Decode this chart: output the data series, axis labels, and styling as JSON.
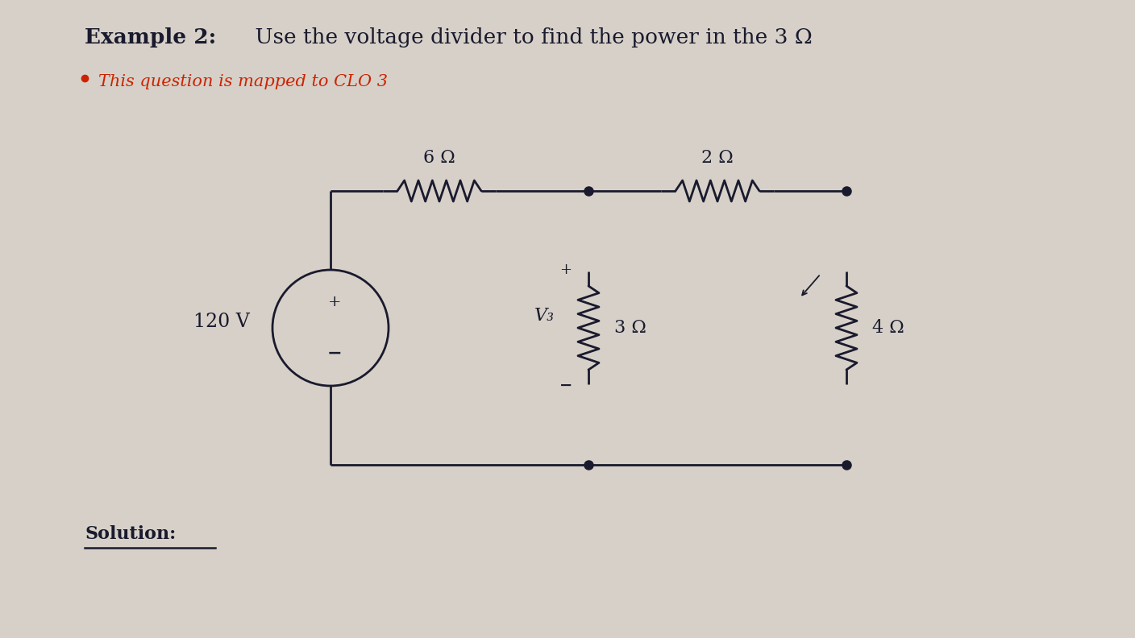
{
  "title_bold": "Example 2:",
  "title_normal": " Use the voltage divider to find the power in the 3 Ω",
  "subtitle": "This question is mapped to CLO 3",
  "solution_label": "Solution:",
  "background_color": "#d6d0c8",
  "text_color": "#1a1a2e",
  "subtitle_color": "#cc2200",
  "circuit_color": "#1a1a2e",
  "voltage_source": "120 V",
  "r1_label": "6 Ω",
  "r2_label": "2 Ω",
  "r3_label": "3 Ω",
  "r3_voltage_label": "V₃",
  "r4_label": "4 Ω",
  "title_fontsize": 19,
  "subtitle_fontsize": 15,
  "label_fontsize": 16,
  "solution_fontsize": 16
}
